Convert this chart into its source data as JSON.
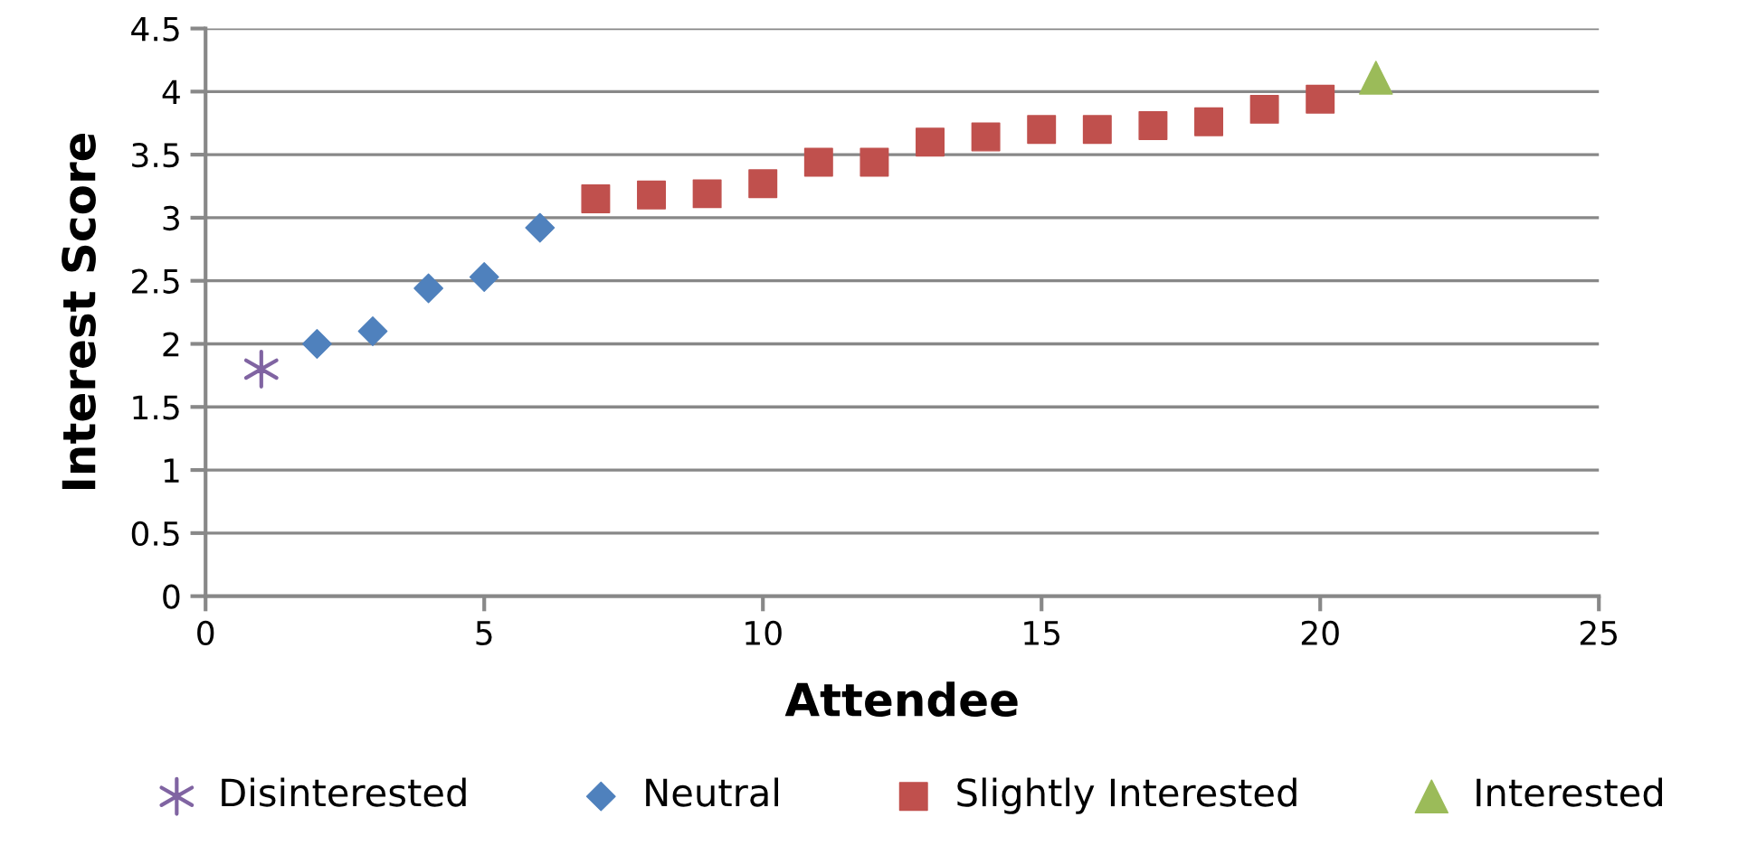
{
  "chart_data": {
    "type": "scatter",
    "xlabel": "Attendee",
    "ylabel": "Interest Score",
    "xlim": [
      0,
      25
    ],
    "xticks": [
      0,
      5,
      10,
      15,
      20,
      25
    ],
    "ylim": [
      0,
      4.5
    ],
    "yticks": [
      0,
      0.5,
      1,
      1.5,
      2,
      2.5,
      3,
      3.5,
      4,
      4.5
    ],
    "grid": "y",
    "legend": "bottom",
    "series": [
      {
        "name": "Disinterested",
        "color": "#8064a2",
        "marker": "cross",
        "x": [
          1
        ],
        "values": [
          1.8
        ]
      },
      {
        "name": "Neutral",
        "color": "#4f81bd",
        "marker": "diamond",
        "x": [
          2,
          3,
          4,
          5,
          6
        ],
        "values": [
          2.0,
          2.1,
          2.44,
          2.53,
          2.92
        ]
      },
      {
        "name": "Slightly Interested",
        "color": "#c0504d",
        "marker": "square",
        "x": [
          7,
          8,
          9,
          10,
          11,
          12,
          13,
          14,
          15,
          16,
          17,
          18,
          19,
          20
        ],
        "values": [
          3.15,
          3.18,
          3.19,
          3.27,
          3.44,
          3.44,
          3.6,
          3.64,
          3.7,
          3.7,
          3.73,
          3.76,
          3.86,
          3.94
        ]
      },
      {
        "name": "Interested",
        "color": "#9bbb59",
        "marker": "triangle",
        "x": [
          21
        ],
        "values": [
          4.11
        ]
      }
    ]
  }
}
